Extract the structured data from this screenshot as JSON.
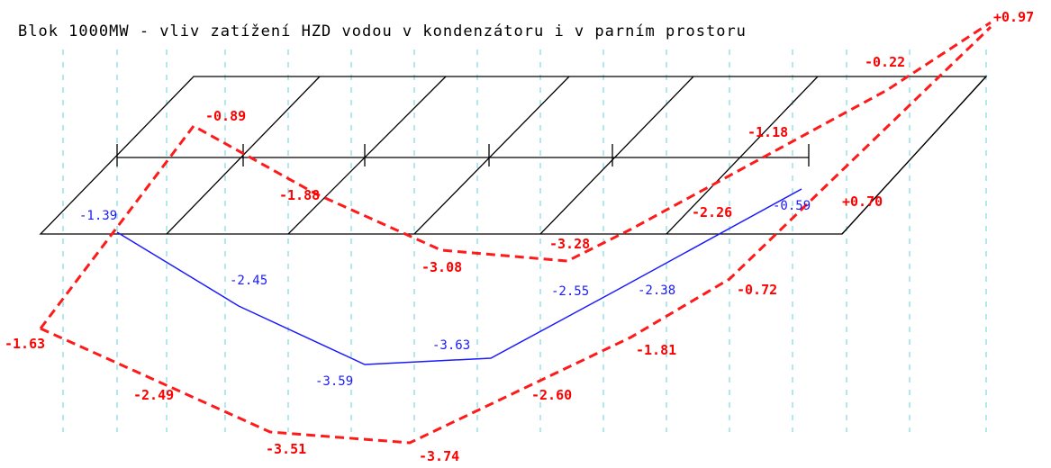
{
  "title": "Blok 1000MW - vliv zatížení HZD vodou v kondenzátoru i v parním prostoru",
  "blue_labels": [
    "-1.39",
    "-2.45",
    "-3.59",
    "-3.63",
    "-2.55",
    "-2.38",
    "-0.59"
  ],
  "red_labels": [
    "+0.97",
    "-0.22",
    "-0.89",
    "-1.18",
    "-1.88",
    "-2.26",
    "+0.70",
    "-3.28",
    "-3.08",
    "-0.72",
    "-1.63",
    "-1.81",
    "-2.49",
    "-2.60",
    "-3.51",
    "-3.74"
  ]
}
